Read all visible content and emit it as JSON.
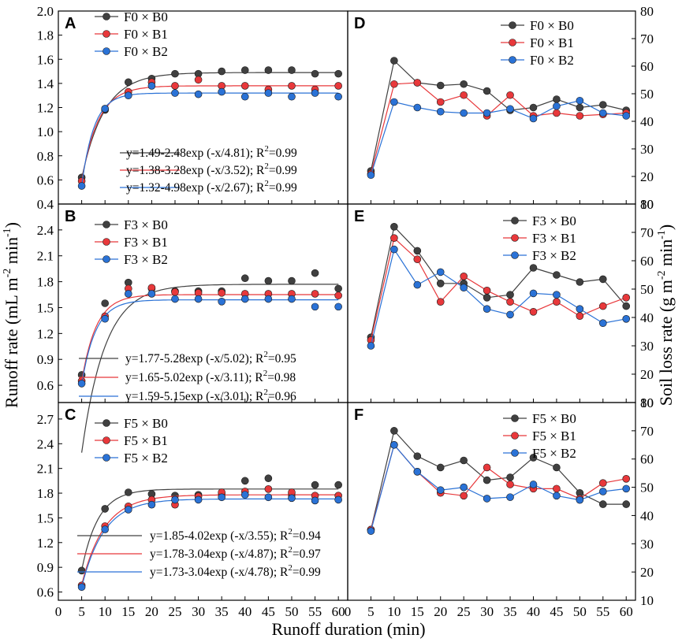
{
  "figure": {
    "xlabel": "Runoff duration (min)",
    "ylabel_left_main": "Runoff rate (mL m",
    "ylabel_left_sup1": "-2",
    "ylabel_left_mid": " min",
    "ylabel_left_sup2": "-1",
    "ylabel_left_end": ")",
    "ylabel_right_main": "Soil loss rate (g m",
    "ylabel_right_sup1": "-2",
    "ylabel_right_mid": " min",
    "ylabel_right_sup2": "-1",
    "ylabel_right_end": ")",
    "xticks": [
      0,
      5,
      10,
      15,
      20,
      25,
      30,
      35,
      40,
      45,
      50,
      55,
      60
    ],
    "series_colors": [
      "#404040",
      "#e8383b",
      "#2a72d6"
    ]
  },
  "chart_data": [
    {
      "panel": "A",
      "type": "scatter",
      "title": "A",
      "xlabel": "Runoff duration (min)",
      "ylabel": "Runoff rate (mL m-2 min-1)",
      "xlim": [
        0,
        62
      ],
      "ylim": [
        0.4,
        2.0
      ],
      "yticks": [
        0.4,
        0.6,
        0.8,
        1.0,
        1.2,
        1.4,
        1.6,
        1.8,
        2.0
      ],
      "ytick_decimals": 1,
      "x": [
        5,
        10,
        15,
        20,
        25,
        30,
        35,
        40,
        45,
        50,
        55,
        60
      ],
      "series": [
        {
          "name": "F0 × B0",
          "values": [
            0.62,
            1.18,
            1.41,
            1.44,
            1.48,
            1.48,
            1.5,
            1.51,
            1.51,
            1.51,
            1.48,
            1.48
          ],
          "fit": {
            "a": 1.49,
            "b": 2.48,
            "c": 4.81
          }
        },
        {
          "name": "F0 × B1",
          "values": [
            0.59,
            1.19,
            1.33,
            1.41,
            1.38,
            1.43,
            1.38,
            1.38,
            1.35,
            1.38,
            1.35,
            1.38
          ],
          "fit": {
            "a": 1.38,
            "b": 3.28,
            "c": 3.52
          }
        },
        {
          "name": "F0 × B2",
          "values": [
            0.55,
            1.19,
            1.3,
            1.38,
            1.32,
            1.31,
            1.33,
            1.29,
            1.32,
            1.29,
            1.32,
            1.29
          ],
          "fit": {
            "a": 1.32,
            "b": 4.98,
            "c": 2.67
          }
        }
      ],
      "equations": [
        {
          "text": "y=1.49-2.48exp (-x/4.81); R",
          "r2": "=0.99"
        },
        {
          "text": "y=1.38-3.28exp (-x/3.52); R",
          "r2": "=0.99"
        },
        {
          "text": "y=1.32-4.98exp (-x/2.67); R",
          "r2": "=0.99"
        }
      ]
    },
    {
      "panel": "B",
      "type": "scatter",
      "title": "B",
      "xlabel": "Runoff duration (min)",
      "ylabel": "Runoff rate (mL m-2 min-1)",
      "xlim": [
        0,
        62
      ],
      "ylim": [
        0.4,
        2.7
      ],
      "yticks": [
        0.6,
        0.9,
        1.2,
        1.5,
        1.8,
        2.1,
        2.4
      ],
      "ytick_decimals": 1,
      "x": [
        5,
        10,
        15,
        20,
        25,
        30,
        35,
        40,
        45,
        50,
        55,
        60
      ],
      "series": [
        {
          "name": "F3 × B0",
          "values": [
            0.72,
            1.55,
            1.79,
            1.72,
            1.69,
            1.69,
            1.69,
            1.84,
            1.81,
            1.81,
            1.9,
            1.72
          ],
          "fit": {
            "a": 1.77,
            "b": 5.28,
            "c": 5.02
          }
        },
        {
          "name": "F3 × B1",
          "values": [
            0.65,
            1.4,
            1.72,
            1.73,
            1.68,
            1.67,
            1.67,
            1.66,
            1.66,
            1.66,
            1.66,
            1.64
          ],
          "fit": {
            "a": 1.65,
            "b": 5.02,
            "c": 3.11
          }
        },
        {
          "name": "F3 × B2",
          "values": [
            0.62,
            1.37,
            1.66,
            1.66,
            1.6,
            1.6,
            1.57,
            1.6,
            1.6,
            1.6,
            1.51,
            1.51
          ],
          "fit": {
            "a": 1.59,
            "b": 5.15,
            "c": 3.01
          }
        }
      ],
      "equations": [
        {
          "text": "y=1.77-5.28exp (-x/5.02); R",
          "r2": "=0.95"
        },
        {
          "text": "y=1.65-5.02exp (-x/3.11); R",
          "r2": "=0.98"
        },
        {
          "text": "y=1.59-5.15exp (-x/3.01); R",
          "r2": "=0.96"
        }
      ]
    },
    {
      "panel": "C",
      "type": "scatter",
      "title": "C",
      "xlabel": "Runoff duration (min)",
      "ylabel": "Runoff rate (mL m-2 min-1)",
      "xlim": [
        0,
        62
      ],
      "ylim": [
        0.5,
        2.9
      ],
      "yticks": [
        0.6,
        0.9,
        1.2,
        1.5,
        1.8,
        2.1,
        2.4,
        2.7
      ],
      "ytick_decimals": 1,
      "x": [
        5,
        10,
        15,
        20,
        25,
        30,
        35,
        40,
        45,
        50,
        55,
        60
      ],
      "series": [
        {
          "name": "F5 × B0",
          "values": [
            0.86,
            1.61,
            1.81,
            1.79,
            1.77,
            1.78,
            1.78,
            1.95,
            1.98,
            1.78,
            1.9,
            1.9
          ],
          "fit": {
            "a": 1.85,
            "b": 4.02,
            "c": 3.55
          }
        },
        {
          "name": "F5 × B1",
          "values": [
            0.68,
            1.4,
            1.64,
            1.72,
            1.66,
            1.76,
            1.81,
            1.82,
            1.85,
            1.81,
            1.77,
            1.77
          ],
          "fit": {
            "a": 1.78,
            "b": 3.04,
            "c": 4.87
          }
        },
        {
          "name": "F5 × B2",
          "values": [
            0.66,
            1.36,
            1.6,
            1.66,
            1.72,
            1.72,
            1.75,
            1.78,
            1.75,
            1.74,
            1.71,
            1.72
          ],
          "fit": {
            "a": 1.73,
            "b": 3.04,
            "c": 4.78
          }
        }
      ],
      "equations": [
        {
          "text": "y=1.85-4.02exp (-x/3.55); R",
          "r2": "=0.94"
        },
        {
          "text": "y=1.78-3.04exp (-x/4.87); R",
          "r2": "=0.97"
        },
        {
          "text": "y=1.73-3.04exp (-x/4.78); R",
          "r2": "=0.99"
        }
      ]
    },
    {
      "panel": "D",
      "type": "line",
      "title": "D",
      "xlabel": "Runoff duration (min)",
      "ylabel": "Soil loss rate (g m-2 min-1)",
      "xlim": [
        0,
        62
      ],
      "ylim": [
        10,
        80
      ],
      "yticks": [
        10,
        20,
        30,
        40,
        50,
        60,
        70,
        80
      ],
      "ytick_decimals": 0,
      "x": [
        5,
        10,
        15,
        20,
        25,
        30,
        35,
        40,
        45,
        50,
        55,
        60
      ],
      "series": [
        {
          "name": "F0 × B0",
          "values": [
            22,
            62,
            54,
            53,
            53.5,
            51,
            44,
            45,
            48,
            45,
            46,
            44
          ]
        },
        {
          "name": "F0 × B1",
          "values": [
            21,
            53.5,
            54,
            47,
            49.5,
            42,
            49.5,
            42,
            43,
            42,
            42.5,
            43
          ]
        },
        {
          "name": "F0 × B2",
          "values": [
            20.5,
            47,
            45,
            43.5,
            43,
            43,
            44.5,
            41,
            45.5,
            47.5,
            43,
            42
          ]
        }
      ]
    },
    {
      "panel": "E",
      "type": "line",
      "title": "E",
      "xlabel": "Runoff duration (min)",
      "ylabel": "Soil loss rate (g m-2 min-1)",
      "xlim": [
        0,
        62
      ],
      "ylim": [
        10,
        80
      ],
      "yticks": [
        10,
        20,
        30,
        40,
        50,
        60,
        70,
        80
      ],
      "ytick_decimals": 0,
      "x": [
        5,
        10,
        15,
        20,
        25,
        30,
        35,
        40,
        45,
        50,
        55,
        60
      ],
      "series": [
        {
          "name": "F3 × B0",
          "values": [
            33,
            72,
            63.5,
            52,
            52,
            47,
            48,
            57.5,
            55,
            52.5,
            53.5,
            44
          ]
        },
        {
          "name": "F3 × B1",
          "values": [
            32,
            68,
            60.5,
            45.5,
            54.5,
            49.5,
            45.5,
            42,
            45.5,
            40.5,
            44,
            47
          ]
        },
        {
          "name": "F3 × B2",
          "values": [
            30,
            64,
            51.5,
            56,
            50.5,
            43,
            41,
            48.5,
            48,
            43,
            38,
            39.5
          ]
        }
      ]
    },
    {
      "panel": "F",
      "type": "line",
      "title": "F",
      "xlabel": "Runoff duration (min)",
      "ylabel": "Soil loss rate (g m-2 min-1)",
      "xlim": [
        0,
        62
      ],
      "ylim": [
        10,
        80
      ],
      "yticks": [
        10,
        20,
        30,
        40,
        50,
        60,
        70,
        80
      ],
      "ytick_decimals": 0,
      "x": [
        5,
        10,
        15,
        20,
        25,
        30,
        35,
        40,
        45,
        50,
        55,
        60
      ],
      "series": [
        {
          "name": "F5 × B0",
          "values": [
            35,
            70,
            61,
            57,
            59.5,
            52.5,
            53.5,
            60.5,
            57,
            48,
            44,
            44
          ]
        },
        {
          "name": "F5 × B1",
          "values": [
            35,
            65,
            55.5,
            48,
            47,
            57,
            51,
            49.5,
            49.5,
            46,
            51.5,
            53
          ]
        },
        {
          "name": "F5 × B2",
          "values": [
            34.5,
            65,
            55.5,
            49,
            50,
            46,
            46.5,
            51,
            47,
            45.5,
            48.5,
            49.5
          ]
        }
      ]
    }
  ]
}
